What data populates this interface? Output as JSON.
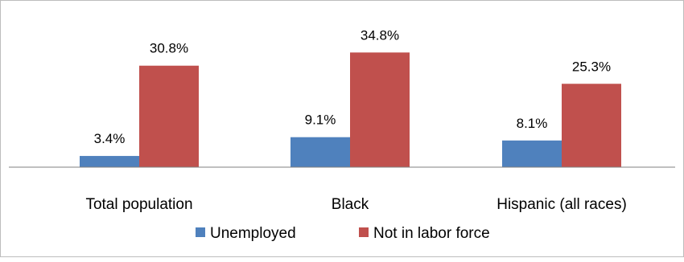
{
  "chart_data": {
    "type": "bar",
    "categories": [
      "Total population",
      "Black",
      "Hispanic (all races)"
    ],
    "series": [
      {
        "name": "Unemployed",
        "values": [
          3.4,
          9.1,
          8.1
        ],
        "labels": [
          "3.4%",
          "9.1%",
          "8.1%"
        ],
        "color": "#4f81bd"
      },
      {
        "name": "Not in labor force",
        "values": [
          30.8,
          34.8,
          25.3
        ],
        "labels": [
          "30.8%",
          "34.8%",
          "25.3%"
        ],
        "color": "#c0504d"
      }
    ],
    "title": "",
    "xlabel": "",
    "ylabel": "",
    "ylim": [
      0,
      40
    ],
    "grid": false,
    "legend_position": "bottom",
    "axis_color": "#808080"
  }
}
